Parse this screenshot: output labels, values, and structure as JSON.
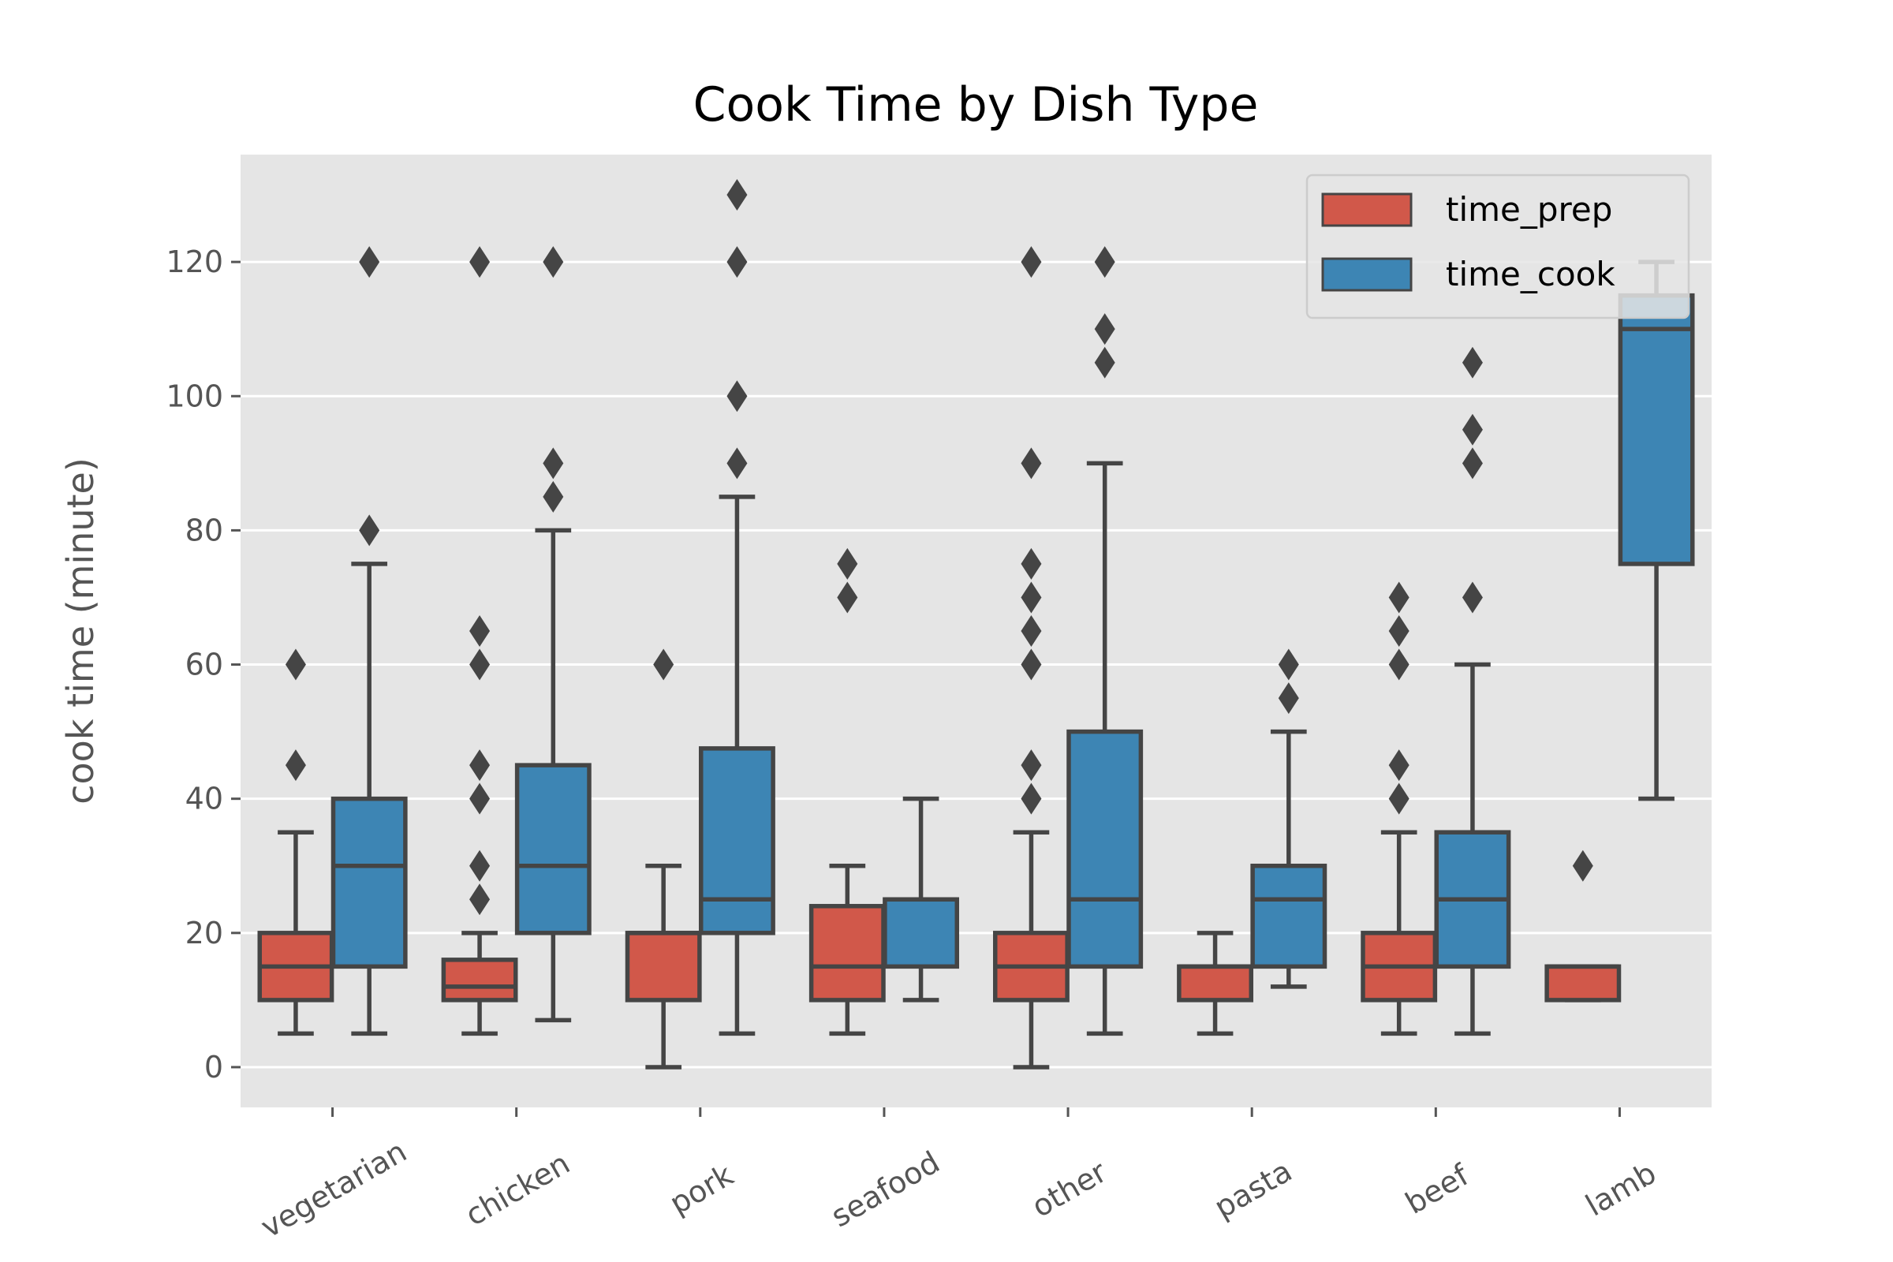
{
  "chart_data": {
    "type": "box",
    "title": "Cook Time by Dish Type",
    "xlabel": "",
    "ylabel": "cook time (minute)",
    "ylim": [
      -6,
      136
    ],
    "yticks": [
      0,
      20,
      40,
      60,
      80,
      100,
      120
    ],
    "grid": true,
    "legend_position": "top-right",
    "categories": [
      "vegetarian",
      "chicken",
      "pork",
      "seafood",
      "other",
      "pasta",
      "beef",
      "lamb"
    ],
    "series": [
      {
        "name": "time_prep",
        "color": "#d1584a",
        "boxes": [
          {
            "whisker_low": 5,
            "q1": 10,
            "median": 15,
            "q3": 20,
            "whisker_high": 35,
            "outliers": [
              45,
              60
            ]
          },
          {
            "whisker_low": 5,
            "q1": 10,
            "median": 12,
            "q3": 16,
            "whisker_high": 20,
            "outliers": [
              25,
              30,
              40,
              45,
              60,
              65,
              120
            ]
          },
          {
            "whisker_low": 0,
            "q1": 10,
            "median": 20,
            "q3": 20,
            "whisker_high": 30,
            "outliers": [
              60
            ]
          },
          {
            "whisker_low": 5,
            "q1": 10,
            "median": 15,
            "q3": 24,
            "whisker_high": 30,
            "outliers": [
              70,
              75
            ]
          },
          {
            "whisker_low": 0,
            "q1": 10,
            "median": 15,
            "q3": 20,
            "whisker_high": 35,
            "outliers": [
              40,
              45,
              60,
              65,
              70,
              75,
              90,
              120
            ]
          },
          {
            "whisker_low": 5,
            "q1": 10,
            "median": 15,
            "q3": 15,
            "whisker_high": 20,
            "outliers": []
          },
          {
            "whisker_low": 5,
            "q1": 10,
            "median": 15,
            "q3": 20,
            "whisker_high": 35,
            "outliers": [
              40,
              45,
              60,
              65,
              70
            ]
          },
          {
            "whisker_low": 10,
            "q1": 10,
            "median": 15,
            "q3": 15,
            "whisker_high": 15,
            "outliers": [
              30
            ]
          }
        ]
      },
      {
        "name": "time_cook",
        "color": "#3d85b4",
        "boxes": [
          {
            "whisker_low": 5,
            "q1": 15,
            "median": 30,
            "q3": 40,
            "whisker_high": 75,
            "outliers": [
              80,
              120
            ]
          },
          {
            "whisker_low": 7,
            "q1": 20,
            "median": 30,
            "q3": 45,
            "whisker_high": 80,
            "outliers": [
              85,
              90,
              120
            ]
          },
          {
            "whisker_low": 5,
            "q1": 20,
            "median": 25,
            "q3": 47.5,
            "whisker_high": 85,
            "outliers": [
              90,
              100,
              120,
              130
            ]
          },
          {
            "whisker_low": 10,
            "q1": 15,
            "median": 25,
            "q3": 25,
            "whisker_high": 40,
            "outliers": []
          },
          {
            "whisker_low": 5,
            "q1": 15,
            "median": 25,
            "q3": 50,
            "whisker_high": 90,
            "outliers": [
              105,
              110,
              120
            ]
          },
          {
            "whisker_low": 12,
            "q1": 15,
            "median": 25,
            "q3": 30,
            "whisker_high": 50,
            "outliers": [
              55,
              60
            ]
          },
          {
            "whisker_low": 5,
            "q1": 15,
            "median": 25,
            "q3": 35,
            "whisker_high": 60,
            "outliers": [
              70,
              90,
              95,
              105
            ]
          },
          {
            "whisker_low": 40,
            "q1": 75,
            "median": 110,
            "q3": 115,
            "whisker_high": 120,
            "outliers": []
          }
        ]
      }
    ]
  }
}
